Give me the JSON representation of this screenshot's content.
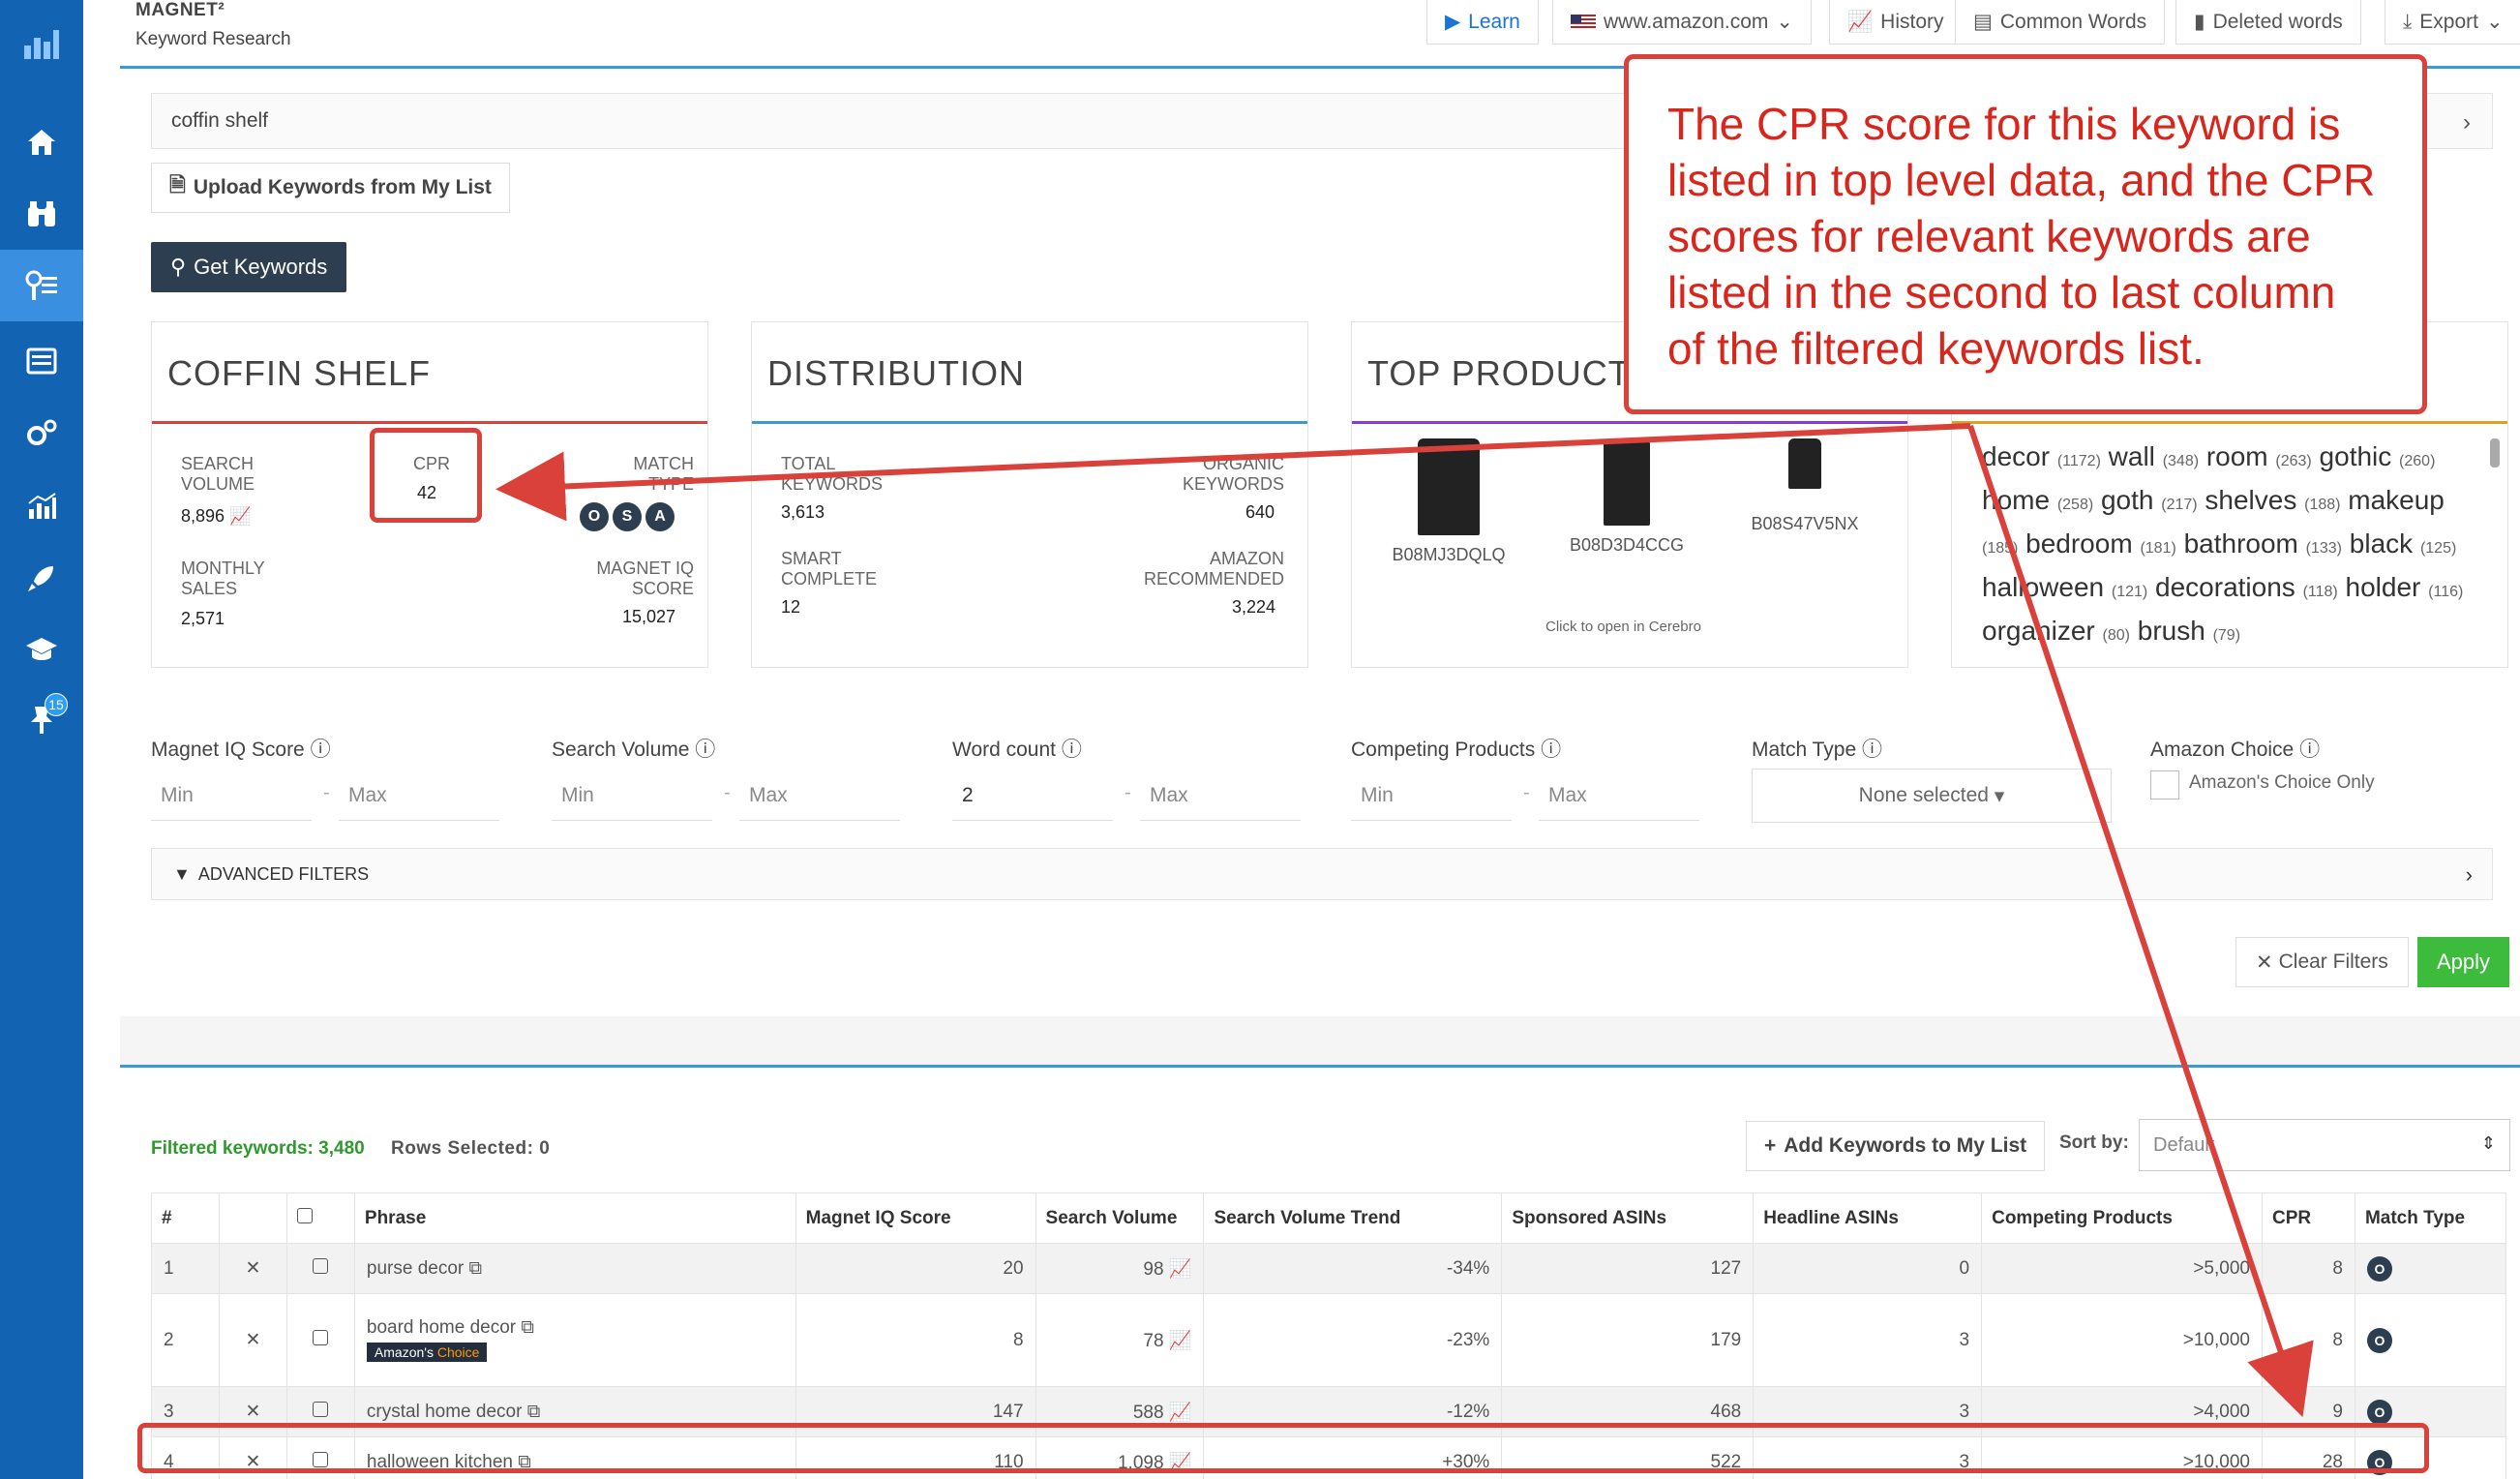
{
  "sidebar": {
    "items": [
      {
        "icon": "logo-icon",
        "glyph": "▟"
      },
      {
        "icon": "home-icon",
        "glyph": "⌂"
      },
      {
        "icon": "binoculars-icon",
        "glyph": "⛯"
      },
      {
        "icon": "keyword-research-icon",
        "glyph": "⚲"
      },
      {
        "icon": "list-icon",
        "glyph": "☰"
      },
      {
        "icon": "gears-icon",
        "glyph": "⚙"
      },
      {
        "icon": "chart-icon",
        "glyph": "▤"
      },
      {
        "icon": "rocket-icon",
        "glyph": "➶"
      },
      {
        "icon": "graduation-icon",
        "glyph": "⌂"
      },
      {
        "icon": "pin-icon",
        "glyph": "⚑"
      }
    ],
    "badge": "15"
  },
  "header": {
    "brand": "MAGNET²",
    "subtitle": "Keyword Research",
    "buttons": {
      "learn": "Learn",
      "marketplace": "www.amazon.com",
      "history": "History",
      "common_words": "Common Words",
      "deleted_words": "Deleted words",
      "export": "Export"
    }
  },
  "search": {
    "value": "coffin shelf"
  },
  "actions": {
    "upload": "Upload Keywords from My List",
    "get_keywords": "Get Keywords"
  },
  "summary": {
    "title": "COFFIN SHELF",
    "search_volume_label": "SEARCH VOLUME",
    "search_volume": "8,896",
    "cpr_label": "CPR",
    "cpr": "42",
    "match_type_label": "MATCH TYPE",
    "match_types": [
      "O",
      "S",
      "A"
    ],
    "monthly_sales_label": "MONTHLY SALES",
    "monthly_sales": "2,571",
    "miq_label": "MAGNET IQ SCORE",
    "miq": "15,027"
  },
  "distribution": {
    "title": "DISTRIBUTION",
    "total_keywords_label": "TOTAL KEYWORDS",
    "total_keywords": "3,613",
    "organic_label": "ORGANIC KEYWORDS",
    "organic": "640",
    "smart_label": "SMART COMPLETE",
    "smart": "12",
    "amazon_label": "AMAZON RECOMMENDED",
    "amazon": "3,224"
  },
  "top_products": {
    "title": "TOP PRODUCTS",
    "asins": [
      "B08MJ3DQLQ",
      "B08D3D4CCG",
      "B08S47V5NX"
    ],
    "hint": "Click to open in Cerebro"
  },
  "word_cloud": [
    {
      "w": "decor",
      "c": "(1172)"
    },
    {
      "w": "wall",
      "c": "(348)"
    },
    {
      "w": "room",
      "c": "(263)"
    },
    {
      "w": "gothic",
      "c": "(260)"
    },
    {
      "w": "home",
      "c": "(258)"
    },
    {
      "w": "goth",
      "c": "(217)"
    },
    {
      "w": "shelves",
      "c": "(188)"
    },
    {
      "w": "makeup",
      "c": "(185)"
    },
    {
      "w": "bedroom",
      "c": "(181)"
    },
    {
      "w": "bathroom",
      "c": "(133)"
    },
    {
      "w": "black",
      "c": "(125)"
    },
    {
      "w": "halloween",
      "c": "(121)"
    },
    {
      "w": "decorations",
      "c": "(118)"
    },
    {
      "w": "holder",
      "c": "(116)"
    },
    {
      "w": "organizer",
      "c": "(80)"
    },
    {
      "w": "brush",
      "c": "(79)"
    }
  ],
  "filters": {
    "miq": "Magnet IQ Score",
    "sv": "Search Volume",
    "wc": "Word count",
    "cp": "Competing Products",
    "mt": "Match Type",
    "ac": "Amazon Choice",
    "min": "Min",
    "max": "Max",
    "wc_min_value": "2",
    "mt_selected": "None selected",
    "ac_only": "Amazon's Choice Only",
    "advanced": "ADVANCED FILTERS",
    "clear": "Clear Filters",
    "apply": "Apply"
  },
  "results": {
    "filtered": "Filtered keywords: 3,480",
    "rows_selected": "Rows Selected: 0",
    "add_to_list": "Add Keywords to My List",
    "sort_by": "Sort by:",
    "sort_value": "Default",
    "columns": [
      "#",
      "",
      "",
      "Phrase",
      "Magnet IQ Score",
      "Search Volume",
      "Search Volume Trend",
      "Sponsored ASINs",
      "Headline ASINs",
      "Competing Products",
      "CPR",
      "Match Type"
    ],
    "rows": [
      {
        "n": "1",
        "phrase": "purse decor",
        "miq": "20",
        "sv": "98",
        "trend": "-34%",
        "sponsored": "127",
        "headline": "0",
        "competing": ">5,000",
        "cpr": "8",
        "mt": "O"
      },
      {
        "n": "2",
        "phrase": "board home decor",
        "badge": "Amazon's Choice",
        "miq": "8",
        "sv": "78",
        "trend": "-23%",
        "sponsored": "179",
        "headline": "3",
        "competing": ">10,000",
        "cpr": "8",
        "mt": "O"
      },
      {
        "n": "3",
        "phrase": "crystal home decor",
        "miq": "147",
        "sv": "588",
        "trend": "-12%",
        "sponsored": "468",
        "headline": "3",
        "competing": ">4,000",
        "cpr": "9",
        "mt": "O"
      },
      {
        "n": "4",
        "phrase": "halloween kitchen",
        "miq": "110",
        "sv": "1,098",
        "trend": "+30%",
        "sponsored": "522",
        "headline": "3",
        "competing": ">10,000",
        "cpr": "28",
        "mt": "O"
      }
    ]
  },
  "annotation": {
    "text": "The CPR score for this keyword is listed in top level data, and the CPR scores for relevant keywords are listed in the second to last column of the filtered keywords list."
  },
  "colors": {
    "sidebar": "#1264b3",
    "accent": "#3a9ad9",
    "annotation": "#d9413a",
    "apply": "#3dbb3d"
  }
}
